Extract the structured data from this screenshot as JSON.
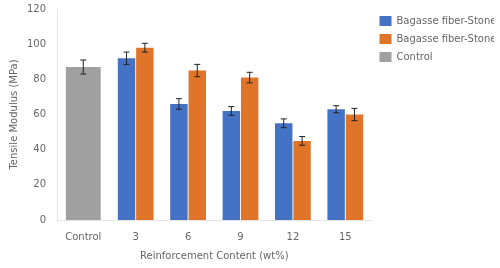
{
  "chart_data": {
    "type": "bar",
    "categories": [
      "Control",
      "3",
      "6",
      "9",
      "12",
      "15"
    ],
    "series": [
      {
        "name": "Bagasse fiber-Stone dust",
        "color": "#4472C4",
        "values": [
          null,
          92,
          66,
          62,
          55,
          63
        ],
        "errors": [
          null,
          3.5,
          3.0,
          2.5,
          2.5,
          2.0
        ]
      },
      {
        "name": "Bagasse fiber-Stone dust-Al-Mg-Si",
        "color": "#E07428",
        "values": [
          null,
          98,
          85,
          81,
          45,
          60
        ],
        "errors": [
          null,
          2.5,
          3.5,
          3.0,
          2.5,
          3.5
        ]
      },
      {
        "name": "Control",
        "color": "#A0A0A0",
        "values": [
          87,
          null,
          null,
          null,
          null,
          null
        ],
        "errors": [
          4.0,
          null,
          null,
          null,
          null,
          null
        ]
      }
    ],
    "xlabel": "Reinforcement Content (wt%)",
    "ylabel": "Tensile Modulus (MPa)",
    "ylim": [
      0,
      120
    ],
    "yticks": [
      0,
      20,
      40,
      60,
      80,
      100,
      120
    ],
    "grid": false,
    "legend": "right"
  }
}
